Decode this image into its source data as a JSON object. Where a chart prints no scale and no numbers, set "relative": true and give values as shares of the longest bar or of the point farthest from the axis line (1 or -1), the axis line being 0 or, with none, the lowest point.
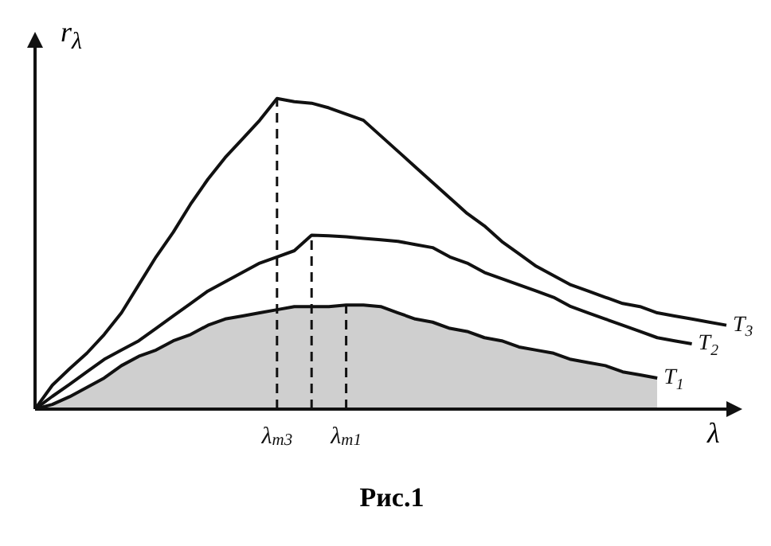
{
  "chart_data": {
    "type": "line",
    "relative": true,
    "ylabel": "r$_{λ}$",
    "xlabel": "λ",
    "annotations": [
      "Рис.1"
    ],
    "legend": false,
    "marker": "none",
    "line_style": "solid",
    "categories": [
      null,
      null,
      null,
      null,
      null,
      null,
      null,
      null,
      null,
      null,
      null,
      null,
      null,
      null,
      null,
      null,
      null,
      null,
      null,
      null,
      null,
      null,
      null,
      null,
      null,
      null,
      null,
      null,
      null,
      null,
      null,
      null,
      null,
      null,
      null,
      null,
      null,
      null,
      null,
      null,
      null
    ],
    "series": [
      {
        "name": "T$_{3}$",
        "color": "#111111",
        "values": [
          0,
          0.077,
          0.13,
          0.18,
          0.24,
          0.31,
          0.4,
          0.49,
          0.57,
          0.66,
          0.74,
          0.81,
          0.87,
          0.93,
          1,
          0.99,
          0.985,
          0.97,
          0.95,
          0.93,
          0.88,
          0.83,
          0.78,
          0.73,
          0.68,
          0.63,
          0.59,
          0.54,
          0.5,
          0.46,
          0.43,
          0.4,
          0.38,
          0.36,
          0.34,
          0.33,
          0.31,
          0.3,
          0.29,
          0.28,
          0.27
        ]
      },
      {
        "name": "T$_{2}$",
        "color": "#111111",
        "values": [
          0,
          0.041,
          0.08,
          0.12,
          0.16,
          0.19,
          0.22,
          0.26,
          0.3,
          0.34,
          0.38,
          0.41,
          0.44,
          0.47,
          0.49,
          0.51,
          0.56,
          0.558,
          0.555,
          0.55,
          0.545,
          0.54,
          0.53,
          0.52,
          0.49,
          0.47,
          0.44,
          0.42,
          0.4,
          0.38,
          0.36,
          0.33,
          0.31,
          0.29,
          0.27,
          0.25,
          0.23,
          0.22,
          0.21,
          null,
          null
        ]
      },
      {
        "name": "T$_{1}$",
        "type": "area",
        "color": "#111111",
        "values": [
          0,
          0.015,
          0.04,
          0.07,
          0.1,
          0.14,
          0.17,
          0.19,
          0.22,
          0.24,
          0.27,
          0.29,
          0.3,
          0.31,
          0.32,
          0.33,
          0.33,
          0.33,
          0.335,
          0.335,
          0.33,
          0.31,
          0.29,
          0.28,
          0.26,
          0.25,
          0.23,
          0.22,
          0.2,
          0.19,
          0.18,
          0.16,
          0.15,
          0.14,
          0.12,
          0.11,
          0.1,
          null,
          null,
          null,
          null
        ]
      }
    ],
    "ref_lines": [
      {
        "axis": "x",
        "label": "λ$_{m3}$",
        "line_style": "dashed"
      },
      {
        "axis": "x",
        "label": null,
        "line_style": "dashed"
      },
      {
        "axis": "x",
        "label": "λ$_{m1}$",
        "line_style": "dashed"
      }
    ]
  }
}
